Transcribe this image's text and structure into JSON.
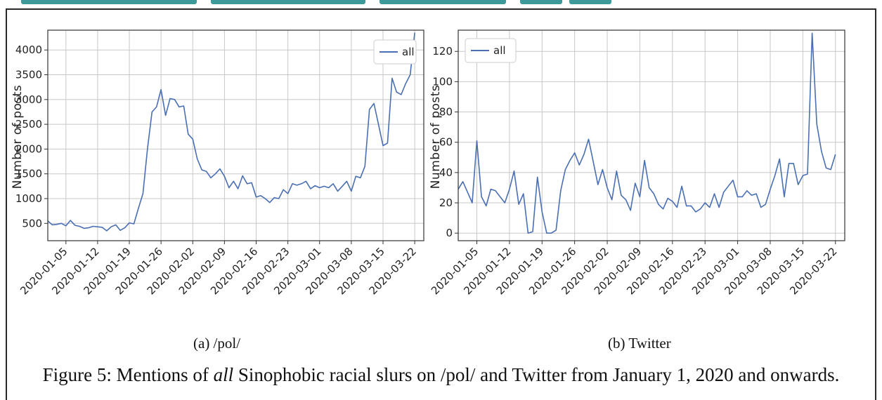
{
  "figure": {
    "caption_prefix": "Figure 5: Mentions of ",
    "caption_emph": "all",
    "caption_suffix": " Sinophobic racial slurs on /pol/ and Twitter from January 1, 2020 and onwards."
  },
  "colors": {
    "line": "#4a6fb3",
    "grid": "#c8c8c8",
    "accent_bar": "#3c9a9a"
  },
  "chart_data": [
    {
      "type": "line",
      "subcaption": "(a) /pol/",
      "xlabel": "",
      "ylabel": "Number of posts",
      "grid": true,
      "legend": "top-right",
      "xlim": [
        "2020-01-01",
        "2020-03-24"
      ],
      "ylim": [
        150,
        4400
      ],
      "yticks": [
        500,
        1000,
        1500,
        2000,
        2500,
        3000,
        3500,
        4000
      ],
      "xticks": [
        "2020-01-05",
        "2020-01-12",
        "2020-01-19",
        "2020-01-26",
        "2020-02-02",
        "2020-02-09",
        "2020-02-16",
        "2020-02-23",
        "2020-03-01",
        "2020-03-08",
        "2020-03-15",
        "2020-03-22"
      ],
      "series": [
        {
          "name": "all",
          "start_date": "2020-01-01",
          "values": [
            550,
            470,
            480,
            500,
            450,
            560,
            460,
            440,
            400,
            410,
            440,
            430,
            420,
            350,
            430,
            470,
            360,
            410,
            510,
            490,
            800,
            1100,
            2000,
            2750,
            2850,
            3200,
            2680,
            3020,
            3000,
            2850,
            2870,
            2300,
            2200,
            1800,
            1580,
            1550,
            1420,
            1500,
            1600,
            1450,
            1220,
            1350,
            1200,
            1460,
            1300,
            1320,
            1030,
            1060,
            1000,
            920,
            1020,
            1000,
            1180,
            1100,
            1300,
            1270,
            1300,
            1350,
            1200,
            1260,
            1220,
            1250,
            1220,
            1300,
            1150,
            1250,
            1350,
            1150,
            1450,
            1420,
            1650,
            2800,
            2920,
            2500,
            2070,
            2120,
            3430,
            3150,
            3100,
            3320,
            3500,
            4350
          ]
        }
      ]
    },
    {
      "type": "line",
      "subcaption": "(b) Twitter",
      "xlabel": "",
      "ylabel": "Number of posts",
      "grid": true,
      "legend": "top-left",
      "xlim": [
        "2020-01-01",
        "2020-03-24"
      ],
      "ylim": [
        -5,
        134
      ],
      "yticks": [
        0,
        20,
        40,
        60,
        80,
        100,
        120
      ],
      "xticks": [
        "2020-01-05",
        "2020-01-12",
        "2020-01-19",
        "2020-01-26",
        "2020-02-02",
        "2020-02-09",
        "2020-02-16",
        "2020-02-23",
        "2020-03-01",
        "2020-03-08",
        "2020-03-15",
        "2020-03-22"
      ],
      "series": [
        {
          "name": "all",
          "start_date": "2020-01-01",
          "values": [
            29,
            34,
            27,
            20,
            61,
            24,
            18,
            29,
            28,
            24,
            20,
            29,
            41,
            19,
            26,
            0,
            1,
            37,
            14,
            0,
            0,
            2,
            28,
            42,
            48,
            53,
            45,
            52,
            62,
            47,
            32,
            42,
            30,
            22,
            41,
            25,
            22,
            15,
            33,
            24,
            48,
            30,
            26,
            19,
            16,
            23,
            21,
            17,
            31,
            18,
            18,
            14,
            16,
            20,
            17,
            26,
            17,
            27,
            31,
            35,
            24,
            24,
            28,
            25,
            26,
            17,
            19,
            29,
            38,
            49,
            24,
            46,
            46,
            32,
            38,
            39,
            132,
            72,
            54,
            43,
            42,
            52
          ]
        }
      ]
    }
  ]
}
